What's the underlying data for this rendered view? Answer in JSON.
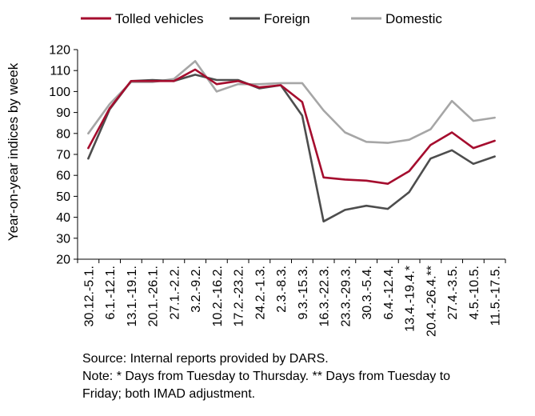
{
  "chart_data": {
    "type": "line",
    "title": "",
    "xlabel": "",
    "ylabel": "Year-on-year indices by week",
    "ylim": [
      20,
      120
    ],
    "yticks": [
      20,
      30,
      40,
      50,
      60,
      70,
      80,
      90,
      100,
      110,
      120
    ],
    "grid": false,
    "legend_position": "top",
    "categories": [
      "30.12.-5.1.",
      "6.1.-12.1.",
      "13.1.-19.1.",
      "20.1.-26.1.",
      "27.1.-2.2.",
      "3.2.-9.2.",
      "10.2.-16.2.",
      "17.2.-23.2.",
      "24.2.-1.3.",
      "2.3.-8.3.",
      "9.3.-15.3.",
      "16.3.-22.3.",
      "23.3.-29.3.",
      "30.3.-5.4.",
      "6.4.-12.4.",
      "13.4.-19.4.*",
      "20.4.-26.4.**",
      "27.4.-3.5.",
      "4.5.-10.5.",
      "11.5.-17.5."
    ],
    "series": [
      {
        "name": "Tolled vehicles",
        "color": "#A50D2E",
        "values": [
          73,
          92,
          105,
          105,
          105,
          110.5,
          103.5,
          105,
          102,
          103,
          95,
          59,
          58,
          57.5,
          56,
          62,
          74.5,
          80.5,
          73,
          76.5
        ]
      },
      {
        "name": "Foreign",
        "color": "#4D4D4D",
        "values": [
          68,
          91.5,
          105,
          105.5,
          105,
          108,
          105.5,
          105.5,
          101.5,
          103,
          88.5,
          38,
          43.5,
          45.5,
          44,
          52,
          68,
          72,
          65.5,
          69
        ]
      },
      {
        "name": "Domestic",
        "color": "#A6A6A6",
        "values": [
          80,
          94,
          104.5,
          104.5,
          106,
          114.5,
          100,
          103.5,
          103.5,
          104,
          104,
          91,
          80.5,
          76,
          75.5,
          77,
          82,
          95.5,
          86,
          87.5
        ]
      }
    ]
  },
  "notes": {
    "source": "Source: Internal reports provided by DARS.",
    "note_line1": "Note: * Days from Tuesday to Thursday. ** Days from Tuesday to",
    "note_line2": "Friday; both IMAD adjustment."
  }
}
